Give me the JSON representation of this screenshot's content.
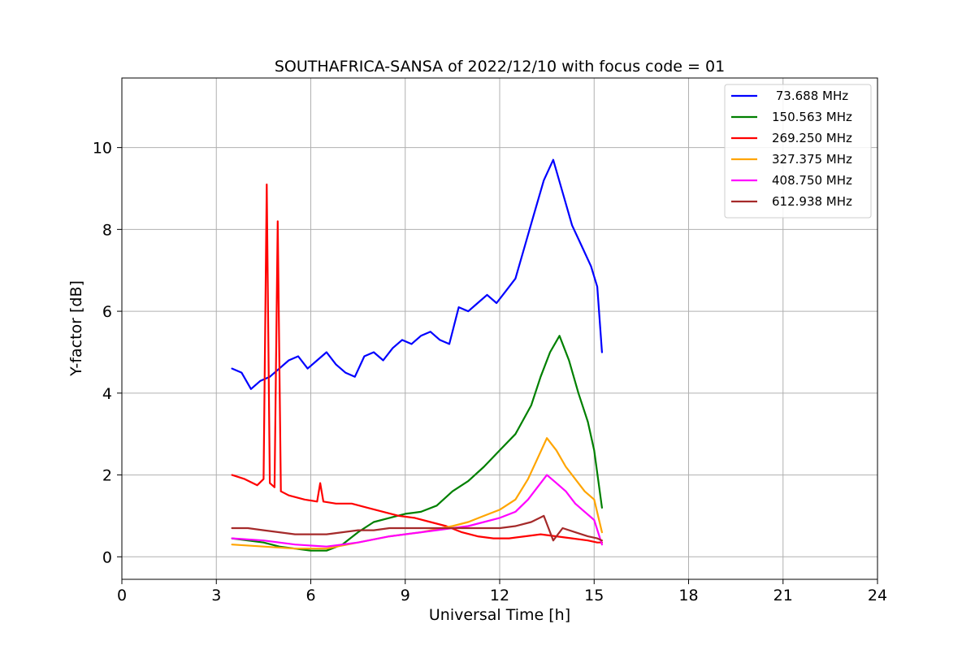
{
  "chart_data": {
    "type": "line",
    "title": "SOUTHAFRICA-SANSA of 2022/12/10 with focus code = 01",
    "xlabel": "Universal Time [h]",
    "ylabel": "Y-factor [dB]",
    "xlim": [
      0,
      24
    ],
    "ylim": [
      -0.55,
      11.7
    ],
    "xticks": [
      0,
      3,
      6,
      9,
      12,
      15,
      18,
      21,
      24
    ],
    "yticks": [
      0,
      2,
      4,
      6,
      8,
      10
    ],
    "grid": true,
    "legend_position": "top-right",
    "series": [
      {
        "name": " 73.688 MHz",
        "color": "#0000ff",
        "x": [
          3.5,
          3.8,
          4.1,
          4.4,
          4.7,
          5.0,
          5.3,
          5.6,
          5.9,
          6.2,
          6.5,
          6.8,
          7.1,
          7.4,
          7.7,
          8.0,
          8.3,
          8.6,
          8.9,
          9.2,
          9.5,
          9.8,
          10.1,
          10.4,
          10.7,
          11.0,
          11.3,
          11.6,
          11.9,
          12.2,
          12.5,
          12.8,
          13.1,
          13.4,
          13.7,
          14.0,
          14.3,
          14.6,
          14.9,
          15.1,
          15.25
        ],
        "y": [
          4.6,
          4.5,
          4.1,
          4.3,
          4.4,
          4.6,
          4.8,
          4.9,
          4.6,
          4.8,
          5.0,
          4.7,
          4.5,
          4.4,
          4.9,
          5.0,
          4.8,
          5.1,
          5.3,
          5.2,
          5.4,
          5.5,
          5.3,
          5.2,
          6.1,
          6.0,
          6.2,
          6.4,
          6.2,
          6.5,
          6.8,
          7.6,
          8.4,
          9.2,
          9.7,
          8.9,
          8.1,
          7.6,
          7.1,
          6.6,
          5.0
        ]
      },
      {
        "name": "150.563 MHz",
        "color": "#008000",
        "x": [
          3.5,
          4.0,
          4.5,
          5.0,
          5.5,
          6.0,
          6.5,
          7.0,
          7.5,
          8.0,
          8.5,
          9.0,
          9.5,
          10.0,
          10.5,
          11.0,
          11.5,
          12.0,
          12.5,
          13.0,
          13.3,
          13.6,
          13.9,
          14.2,
          14.5,
          14.8,
          15.0,
          15.25
        ],
        "y": [
          0.45,
          0.4,
          0.35,
          0.25,
          0.2,
          0.15,
          0.15,
          0.3,
          0.6,
          0.85,
          0.95,
          1.05,
          1.1,
          1.25,
          1.6,
          1.85,
          2.2,
          2.6,
          3.0,
          3.7,
          4.4,
          5.0,
          5.4,
          4.8,
          4.0,
          3.3,
          2.6,
          1.2
        ]
      },
      {
        "name": "269.250 MHz",
        "color": "#ff0000",
        "x": [
          3.5,
          3.9,
          4.3,
          4.5,
          4.6,
          4.7,
          4.85,
          4.95,
          5.05,
          5.3,
          5.8,
          6.2,
          6.3,
          6.4,
          6.8,
          7.3,
          7.8,
          8.3,
          8.8,
          9.3,
          9.8,
          10.3,
          10.8,
          11.3,
          11.8,
          12.3,
          12.8,
          13.3,
          13.8,
          14.3,
          14.8,
          15.1,
          15.25
        ],
        "y": [
          2.0,
          1.9,
          1.75,
          1.9,
          9.1,
          1.8,
          1.7,
          8.2,
          1.6,
          1.5,
          1.4,
          1.35,
          1.8,
          1.35,
          1.3,
          1.3,
          1.2,
          1.1,
          1.0,
          0.95,
          0.85,
          0.75,
          0.6,
          0.5,
          0.45,
          0.45,
          0.5,
          0.55,
          0.5,
          0.45,
          0.4,
          0.35,
          0.35
        ]
      },
      {
        "name": "327.375 MHz",
        "color": "#ffa500",
        "x": [
          3.5,
          4.5,
          5.5,
          6.5,
          7.5,
          8.5,
          9.5,
          10.5,
          11.0,
          11.5,
          12.0,
          12.5,
          12.9,
          13.2,
          13.5,
          13.8,
          14.1,
          14.4,
          14.7,
          15.0,
          15.25
        ],
        "y": [
          0.3,
          0.25,
          0.2,
          0.2,
          0.35,
          0.5,
          0.6,
          0.75,
          0.85,
          1.0,
          1.15,
          1.4,
          1.9,
          2.4,
          2.9,
          2.6,
          2.2,
          1.9,
          1.6,
          1.4,
          0.6
        ]
      },
      {
        "name": "408.750 MHz",
        "color": "#ff00ff",
        "x": [
          3.5,
          4.5,
          5.5,
          6.5,
          7.5,
          8.5,
          9.5,
          10.5,
          11.0,
          11.5,
          12.0,
          12.5,
          12.9,
          13.2,
          13.5,
          13.8,
          14.1,
          14.4,
          14.7,
          15.0,
          15.25
        ],
        "y": [
          0.45,
          0.4,
          0.3,
          0.25,
          0.35,
          0.5,
          0.6,
          0.7,
          0.75,
          0.85,
          0.95,
          1.1,
          1.4,
          1.7,
          2.0,
          1.8,
          1.6,
          1.3,
          1.1,
          0.9,
          0.3
        ]
      },
      {
        "name": "612.938 MHz",
        "color": "#a52a2a",
        "x": [
          3.5,
          4.0,
          4.5,
          5.0,
          5.5,
          6.0,
          6.5,
          7.0,
          7.5,
          8.0,
          8.5,
          9.0,
          9.5,
          10.0,
          10.5,
          11.0,
          11.5,
          12.0,
          12.5,
          13.0,
          13.4,
          13.7,
          14.0,
          14.4,
          14.8,
          15.1,
          15.25
        ],
        "y": [
          0.7,
          0.7,
          0.65,
          0.6,
          0.55,
          0.55,
          0.55,
          0.6,
          0.65,
          0.65,
          0.7,
          0.7,
          0.7,
          0.7,
          0.7,
          0.7,
          0.7,
          0.7,
          0.75,
          0.85,
          1.0,
          0.4,
          0.7,
          0.6,
          0.5,
          0.45,
          0.4
        ]
      }
    ]
  }
}
